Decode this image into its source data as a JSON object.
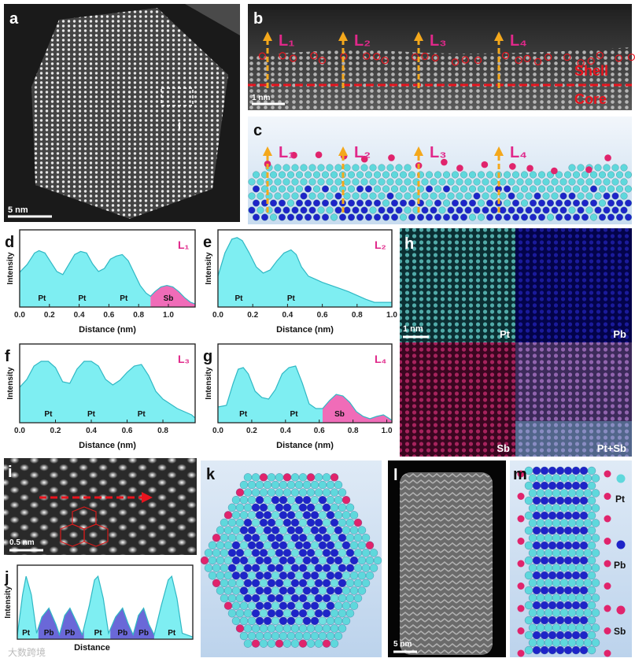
{
  "chart_data": [
    {
      "type": "area",
      "label": "d",
      "tag": "L₁",
      "xlabel": "Distance (nm)",
      "ylabel": "Intensity",
      "x": [
        0,
        0.05,
        0.1,
        0.13,
        0.17,
        0.21,
        0.25,
        0.29,
        0.33,
        0.37,
        0.41,
        0.45,
        0.49,
        0.53,
        0.57,
        0.61,
        0.65,
        0.69,
        0.73,
        0.77,
        0.81,
        0.85,
        0.88,
        0.91,
        0.95,
        0.99,
        1.03,
        1.07,
        1.11,
        1.15,
        1.18
      ],
      "values": [
        45,
        55,
        70,
        73,
        70,
        58,
        46,
        42,
        55,
        68,
        72,
        70,
        56,
        46,
        50,
        62,
        66,
        68,
        60,
        44,
        28,
        18,
        14,
        20,
        26,
        28,
        26,
        20,
        12,
        6,
        4
      ],
      "xlim": [
        0,
        1.18
      ],
      "xticks": [
        {
          "value": 0,
          "label": "0.0"
        },
        0.2,
        0.4,
        0.6,
        0.8,
        {
          "value": 1,
          "label": "1.0"
        }
      ],
      "ylim": [
        0,
        100
      ],
      "fills": [
        {
          "color": "#7eeef2",
          "from": 0,
          "to": 0.88
        },
        {
          "color": "#f06cb8",
          "from": 0.88,
          "to": 1.18
        }
      ],
      "region_labels": [
        {
          "text": "Pt",
          "x": 0.15
        },
        {
          "text": "Pt",
          "x": 0.42
        },
        {
          "text": "Pt",
          "x": 0.7
        },
        {
          "text": "Sb",
          "x": 1.0
        }
      ]
    },
    {
      "type": "area",
      "label": "e",
      "tag": "L₂",
      "xlabel": "Distance (nm)",
      "ylabel": "Intensity",
      "x": [
        0,
        0.04,
        0.08,
        0.11,
        0.14,
        0.18,
        0.22,
        0.26,
        0.3,
        0.34,
        0.38,
        0.42,
        0.45,
        0.48,
        0.52,
        0.56,
        0.6,
        0.65,
        0.7,
        0.75,
        0.8,
        0.85,
        0.9,
        0.95,
        1.0
      ],
      "values": [
        40,
        70,
        88,
        90,
        86,
        70,
        52,
        44,
        48,
        60,
        70,
        74,
        68,
        52,
        40,
        36,
        32,
        28,
        24,
        20,
        15,
        10,
        6,
        6,
        6
      ],
      "xlim": [
        0,
        1
      ],
      "xticks": [
        {
          "value": 0,
          "label": "0.0"
        },
        0.2,
        0.4,
        0.6,
        0.8,
        {
          "value": 1,
          "label": "1.0"
        }
      ],
      "ylim": [
        0,
        100
      ],
      "fills": [
        {
          "color": "#7eeef2",
          "from": 0,
          "to": 1
        }
      ],
      "region_labels": [
        {
          "text": "Pt",
          "x": 0.12
        },
        {
          "text": "Pt",
          "x": 0.42
        }
      ]
    },
    {
      "type": "area",
      "label": "f",
      "tag": "L₃",
      "xlabel": "Distance (nm)",
      "ylabel": "Intensity",
      "x": [
        0,
        0.04,
        0.08,
        0.12,
        0.16,
        0.2,
        0.24,
        0.28,
        0.32,
        0.36,
        0.4,
        0.44,
        0.48,
        0.52,
        0.56,
        0.6,
        0.64,
        0.68,
        0.72,
        0.76,
        0.8,
        0.84,
        0.88,
        0.92,
        0.96,
        0.98
      ],
      "values": [
        45,
        55,
        72,
        78,
        78,
        70,
        52,
        50,
        68,
        78,
        78,
        72,
        55,
        48,
        54,
        64,
        72,
        74,
        60,
        40,
        30,
        24,
        18,
        14,
        10,
        6
      ],
      "xlim": [
        0,
        0.98
      ],
      "xticks": [
        {
          "value": 0,
          "label": "0.0"
        },
        0.2,
        0.4,
        0.6,
        0.8
      ],
      "ylim": [
        0,
        100
      ],
      "fills": [
        {
          "color": "#7eeef2",
          "from": 0,
          "to": 0.98
        }
      ],
      "region_labels": [
        {
          "text": "Pt",
          "x": 0.16
        },
        {
          "text": "Pt",
          "x": 0.4
        },
        {
          "text": "Pt",
          "x": 0.68
        }
      ]
    },
    {
      "type": "area",
      "label": "g",
      "tag": "L₄",
      "xlabel": "Distance (nm)",
      "ylabel": "Intensity",
      "x": [
        0,
        0.05,
        0.09,
        0.12,
        0.15,
        0.18,
        0.22,
        0.26,
        0.3,
        0.34,
        0.38,
        0.42,
        0.46,
        0.5,
        0.54,
        0.58,
        0.62,
        0.66,
        0.7,
        0.74,
        0.78,
        0.82,
        0.86,
        0.9,
        0.94,
        0.98,
        1.01,
        1.03
      ],
      "values": [
        20,
        22,
        50,
        68,
        70,
        62,
        40,
        32,
        30,
        42,
        62,
        70,
        72,
        50,
        24,
        18,
        18,
        28,
        36,
        34,
        26,
        14,
        8,
        5,
        8,
        10,
        6,
        3
      ],
      "xlim": [
        0,
        1.03
      ],
      "xticks": [
        {
          "value": 0,
          "label": "0.0"
        },
        0.2,
        0.4,
        0.6,
        0.8,
        {
          "value": 1,
          "label": "1.0"
        }
      ],
      "ylim": [
        0,
        100
      ],
      "fills": [
        {
          "color": "#7eeef2",
          "from": 0,
          "to": 0.62
        },
        {
          "color": "#f06cb8",
          "from": 0.62,
          "to": 1.03
        }
      ],
      "region_labels": [
        {
          "text": "Pt",
          "x": 0.15
        },
        {
          "text": "Pt",
          "x": 0.45
        },
        {
          "text": "Sb",
          "x": 0.72
        }
      ]
    },
    {
      "type": "area",
      "label": "j",
      "xlabel": "Distance",
      "ylabel": "Intensity",
      "x": [
        0,
        0.03,
        0.05,
        0.08,
        0.11,
        0.14,
        0.18,
        0.22,
        0.24,
        0.27,
        0.3,
        0.34,
        0.37,
        0.41,
        0.44,
        0.46,
        0.49,
        0.52,
        0.56,
        0.6,
        0.63,
        0.66,
        0.69,
        0.72,
        0.75,
        0.78,
        0.82,
        0.86,
        0.88,
        0.91,
        0.94,
        1.0
      ],
      "values": [
        5,
        60,
        85,
        60,
        8,
        30,
        42,
        20,
        6,
        32,
        42,
        22,
        6,
        45,
        80,
        85,
        55,
        8,
        30,
        42,
        22,
        6,
        32,
        42,
        20,
        6,
        45,
        80,
        85,
        55,
        8,
        3
      ],
      "xlim": [
        0,
        1
      ],
      "ylim": [
        0,
        100
      ],
      "fills": [
        {
          "color": "#7eeef2",
          "from": 0,
          "to": 0.12
        },
        {
          "color": "#6a68d8",
          "from": 0.12,
          "to": 0.38
        },
        {
          "color": "#7eeef2",
          "from": 0.38,
          "to": 0.53
        },
        {
          "color": "#6a68d8",
          "from": 0.53,
          "to": 0.78
        },
        {
          "color": "#7eeef2",
          "from": 0.78,
          "to": 1
        }
      ],
      "region_labels": [
        {
          "text": "Pt",
          "x": 0.05
        },
        {
          "text": "Pb",
          "x": 0.18
        },
        {
          "text": "Pb",
          "x": 0.3
        },
        {
          "text": "Pt",
          "x": 0.46
        },
        {
          "text": "Pb",
          "x": 0.6
        },
        {
          "text": "Pb",
          "x": 0.72
        },
        {
          "text": "Pt",
          "x": 0.88
        }
      ]
    }
  ],
  "panels": {
    "a": {
      "label": "a",
      "scale_bar": "5 nm",
      "inset_label": "i"
    },
    "b": {
      "label": "b",
      "lines": [
        "L₁",
        "L₂",
        "L₃",
        "L₄"
      ],
      "shell": "Shell",
      "core": "Core",
      "scale_bar": "1 nm"
    },
    "c": {
      "label": "c",
      "lines": [
        "L₁",
        "L₂",
        "L₃",
        "L₄"
      ]
    },
    "h": {
      "label": "h",
      "scale_bar": "1 nm",
      "maps": [
        "Pt",
        "Pb",
        "Sb",
        "Pt+Sb"
      ]
    },
    "i": {
      "label": "i",
      "scale_bar": "0.5 nm"
    },
    "k": {
      "label": "k"
    },
    "l": {
      "label": "l",
      "scale_bar": "5 nm"
    },
    "m": {
      "label": "m",
      "legend": [
        "Pt",
        "Pb",
        "Sb"
      ]
    }
  },
  "watermark": "大数跨境"
}
